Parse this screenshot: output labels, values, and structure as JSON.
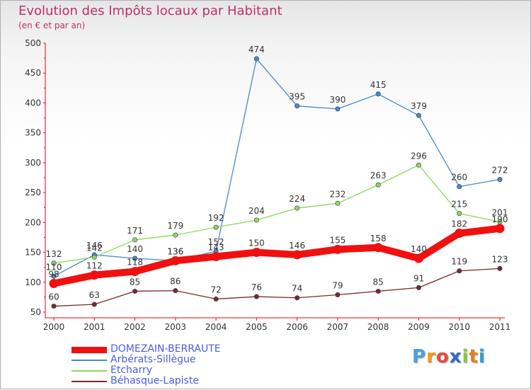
{
  "chart_data": {
    "type": "line",
    "title": "Evolution des Impôts locaux par Habitant",
    "subtitle": "(en € et par an)",
    "xlabel": "",
    "ylabel": "",
    "x": [
      "2000",
      "2001",
      "2002",
      "2003",
      "2004",
      "2005",
      "2006",
      "2007",
      "2008",
      "2009",
      "2010",
      "2011"
    ],
    "ylim": [
      50,
      500
    ],
    "yticks": [
      50,
      100,
      150,
      200,
      250,
      300,
      350,
      400,
      450,
      500
    ],
    "grid": false,
    "legend_position": "bottom-left",
    "series": [
      {
        "name": "Arbérats-Sillègue",
        "color": "#4a8ac8",
        "values": [
          110,
          146,
          140,
          136,
          152,
          474,
          395,
          390,
          415,
          379,
          260,
          272
        ]
      },
      {
        "name": "Etcharry",
        "color": "#8fd65a",
        "values": [
          132,
          142,
          171,
          179,
          192,
          204,
          224,
          232,
          263,
          296,
          215,
          201
        ]
      },
      {
        "name": "Béhasque-Lapiste",
        "color": "#7a2a2a",
        "values": [
          60,
          63,
          85,
          86,
          72,
          76,
          74,
          79,
          85,
          91,
          119,
          123
        ]
      },
      {
        "name": "DOMEZAIN-BERRAUTE",
        "color": "#f01010",
        "values": [
          98,
          112,
          118,
          136,
          143,
          150,
          146,
          155,
          158,
          140,
          182,
          190
        ]
      }
    ],
    "legend_order": [
      "DOMEZAIN-BERRAUTE",
      "Arbérats-Sillègue",
      "Etcharry",
      "Béhasque-Lapiste"
    ]
  },
  "logo": {
    "letters": [
      "P",
      "r",
      "o",
      "x",
      "i",
      "t",
      "i"
    ],
    "colors": [
      "#4aa0e0",
      "#f39c12",
      "#e74c3c",
      "#2d6fc0",
      "#8cc63f",
      "#e67e22",
      "#3a9ad9"
    ]
  }
}
